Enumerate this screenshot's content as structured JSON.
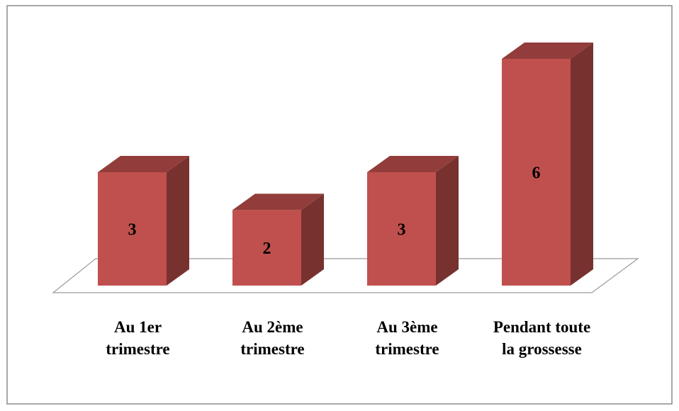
{
  "chart_data": {
    "type": "bar3d",
    "categories": [
      "Au 1er trimestre",
      "Au 2ème trimestre",
      "Au 3ème trimestre",
      "Pendant toute la grossesse"
    ],
    "values": [
      3,
      2,
      3,
      6
    ],
    "color": "#c0504d",
    "ylim": [
      0,
      6
    ]
  }
}
